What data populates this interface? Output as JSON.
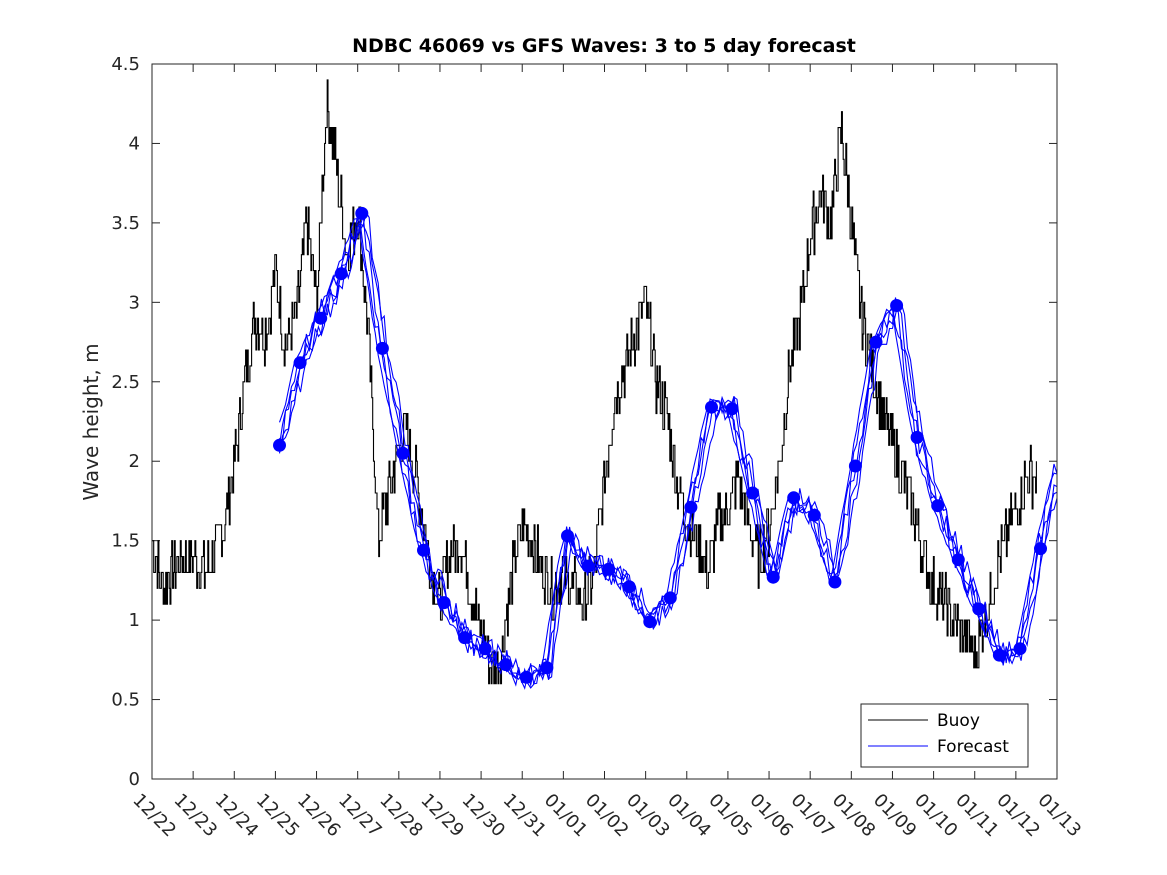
{
  "chart_data": {
    "type": "line",
    "title": "NDBC 46069 vs GFS Waves: 3 to 5 day forecast",
    "xlabel": "",
    "ylabel": "Wave height, m",
    "xlim": [
      0,
      22
    ],
    "ylim": [
      0,
      4.5
    ],
    "x_tick_labels": [
      "12/22",
      "12/23",
      "12/24",
      "12/25",
      "12/26",
      "12/27",
      "12/28",
      "12/29",
      "12/30",
      "12/31",
      "01/01",
      "01/02",
      "01/03",
      "01/04",
      "01/05",
      "01/06",
      "01/07",
      "01/08",
      "01/09",
      "01/10",
      "01/11",
      "01/12",
      "01/13"
    ],
    "y_ticks": [
      0,
      0.5,
      1,
      1.5,
      2,
      2.5,
      3,
      3.5,
      4,
      4.5
    ],
    "y_tick_labels": [
      "0",
      "0.5",
      "1",
      "1.5",
      "2",
      "2.5",
      "3",
      "3.5",
      "4",
      "4.5"
    ],
    "legend": {
      "location": "bottom-right",
      "entries": [
        "Buoy",
        "Forecast"
      ]
    },
    "colors": {
      "buoy": "#000000",
      "forecast": "#0000ff",
      "axis": "#262626"
    },
    "series": [
      {
        "name": "Buoy",
        "color": "#000000",
        "x": [
          0.0,
          0.25,
          0.5,
          0.75,
          1.0,
          1.25,
          1.5,
          1.75,
          2.0,
          2.25,
          2.5,
          2.75,
          3.0,
          3.25,
          3.5,
          3.75,
          4.0,
          4.25,
          4.5,
          4.75,
          5.0,
          5.25,
          5.5,
          5.75,
          6.0,
          6.2,
          6.4,
          6.6,
          6.8,
          7.0,
          7.2,
          7.5,
          7.75,
          8.0,
          8.25,
          8.5,
          8.75,
          9.0,
          9.25,
          9.5,
          9.75,
          10.0,
          10.25,
          10.5,
          10.75,
          11.0,
          11.25,
          11.5,
          11.75,
          12.0,
          12.25,
          12.5,
          12.75,
          13.0,
          13.25,
          13.5,
          13.75,
          14.0,
          14.25,
          14.5,
          14.75,
          15.0,
          15.25,
          15.5,
          15.75,
          16.0,
          16.25,
          16.5,
          16.75,
          17.0,
          17.25,
          17.5,
          17.75,
          18.0,
          18.25,
          18.5,
          18.75,
          19.0,
          19.25,
          19.5,
          19.75,
          20.0,
          20.25,
          20.5,
          20.75,
          21.0,
          21.25,
          21.5
        ],
        "y": [
          1.5,
          1.2,
          1.3,
          1.4,
          1.4,
          1.3,
          1.4,
          1.6,
          2.0,
          2.5,
          2.9,
          2.8,
          3.2,
          2.7,
          2.9,
          3.5,
          3.0,
          4.3,
          3.8,
          3.3,
          3.6,
          2.8,
          1.5,
          1.8,
          2.1,
          2.2,
          1.9,
          1.6,
          1.3,
          1.1,
          1.4,
          1.5,
          1.2,
          0.9,
          0.7,
          0.8,
          1.3,
          1.6,
          1.5,
          1.3,
          1.2,
          1.3,
          1.2,
          1.1,
          1.3,
          1.9,
          2.4,
          2.6,
          2.8,
          3.0,
          2.5,
          2.3,
          1.9,
          1.6,
          1.5,
          1.3,
          1.6,
          1.7,
          1.9,
          1.6,
          1.4,
          1.6,
          2.0,
          2.6,
          2.9,
          3.4,
          3.7,
          3.5,
          4.1,
          3.5,
          2.9,
          2.6,
          2.3,
          2.1,
          1.9,
          1.7,
          1.4,
          1.2,
          1.1,
          1.0,
          0.9,
          0.8,
          1.0,
          1.3,
          1.5,
          1.7,
          1.9,
          1.9
        ]
      },
      {
        "name": "Forecast",
        "color": "#0000ff",
        "x": [
          3.1,
          3.6,
          4.1,
          4.6,
          5.1,
          5.6,
          6.1,
          6.6,
          7.1,
          7.6,
          8.1,
          8.6,
          9.1,
          9.6,
          10.1,
          10.6,
          11.1,
          11.6,
          12.1,
          12.6,
          13.1,
          13.6,
          14.1,
          14.6,
          15.1,
          15.6,
          16.1,
          16.6,
          17.1,
          17.6,
          18.1,
          18.6,
          19.1,
          19.6,
          20.1,
          20.6,
          21.1,
          21.6,
          22.0
        ],
        "y": [
          2.1,
          2.62,
          2.9,
          3.18,
          3.56,
          2.71,
          2.05,
          1.44,
          1.11,
          0.89,
          0.82,
          0.72,
          0.64,
          0.7,
          1.53,
          1.34,
          1.32,
          1.21,
          0.99,
          1.14,
          1.71,
          2.34,
          2.33,
          1.8,
          1.27,
          1.77,
          1.66,
          1.24,
          1.97,
          2.75,
          2.98,
          2.15,
          1.72,
          1.38,
          1.07,
          0.78,
          0.82,
          1.45,
          1.92
        ]
      }
    ],
    "forecast_markers": {
      "x": [
        3.1,
        3.6,
        4.1,
        4.6,
        5.1,
        5.6,
        6.1,
        6.6,
        7.1,
        7.6,
        8.1,
        8.6,
        9.1,
        9.6,
        10.1,
        10.6,
        11.1,
        11.6,
        12.1,
        12.6,
        13.1,
        13.6,
        14.1,
        14.6,
        15.1,
        15.6,
        16.1,
        16.6,
        17.1,
        17.6,
        18.1,
        18.6,
        19.1,
        19.6,
        20.1,
        20.6,
        21.1,
        21.6
      ],
      "y": [
        2.1,
        2.62,
        2.9,
        3.18,
        3.56,
        2.71,
        2.05,
        1.44,
        1.11,
        0.89,
        0.82,
        0.72,
        0.64,
        0.7,
        1.53,
        1.34,
        1.32,
        1.21,
        0.99,
        1.14,
        1.71,
        2.34,
        2.33,
        1.8,
        1.27,
        1.77,
        1.66,
        1.24,
        1.97,
        2.75,
        2.98,
        2.15,
        1.72,
        1.38,
        1.07,
        0.78,
        0.82,
        1.45
      ]
    }
  }
}
